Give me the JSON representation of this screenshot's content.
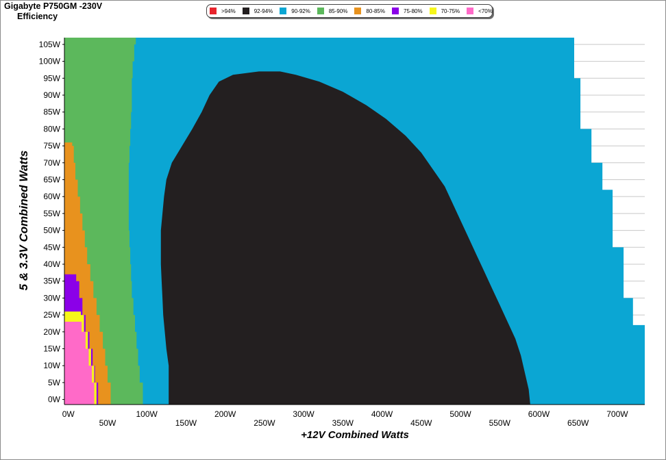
{
  "header": {
    "title_line1": "Gigabyte P750GM -230V",
    "title_line2": "Efficiency"
  },
  "legend": [
    {
      "label": ">94%",
      "color": "#e8242c"
    },
    {
      "label": "92-94%",
      "color": "#231f20"
    },
    {
      "label": "90-92%",
      "color": "#0ba6d3"
    },
    {
      "label": "85-90%",
      "color": "#5cb85c"
    },
    {
      "label": "80-85%",
      "color": "#e8921e"
    },
    {
      "label": "75-80%",
      "color": "#8b00e8"
    },
    {
      "label": "70-75%",
      "color": "#f6f61a"
    },
    {
      "label": "<70%",
      "color": "#ff6ac8"
    }
  ],
  "chart_data": {
    "type": "heatmap",
    "title": "Efficiency",
    "xlabel": "+12V Combined Watts",
    "ylabel": "5 & 3.3V Combined Watts",
    "xlim": [
      -5,
      735
    ],
    "ylim": [
      -1.5,
      107
    ],
    "x_ticks": [
      "0W",
      "50W",
      "100W",
      "150W",
      "200W",
      "250W",
      "300W",
      "350W",
      "400W",
      "450W",
      "500W",
      "550W",
      "600W",
      "650W",
      "700W"
    ],
    "x_tick_values": [
      0,
      50,
      100,
      150,
      200,
      250,
      300,
      350,
      400,
      450,
      500,
      550,
      600,
      650,
      700
    ],
    "y_ticks": [
      "0W",
      "5W",
      "10W",
      "15W",
      "20W",
      "25W",
      "30W",
      "35W",
      "40W",
      "45W",
      "50W",
      "55W",
      "60W",
      "65W",
      "70W",
      "75W",
      "80W",
      "85W",
      "90W",
      "95W",
      "100W",
      "105W"
    ],
    "y_tick_values": [
      0,
      5,
      10,
      15,
      20,
      25,
      30,
      35,
      40,
      45,
      50,
      55,
      60,
      65,
      70,
      75,
      80,
      85,
      90,
      95,
      100,
      105
    ],
    "grid": true,
    "legend_position": "top-center",
    "regions": [
      {
        "band": "90-92%",
        "boundary_x": [
          [
            -1.5,
            735
          ],
          [
            0,
            735
          ],
          [
            5,
            735
          ],
          [
            10,
            735
          ],
          [
            15,
            735
          ],
          [
            20,
            735
          ],
          [
            22,
            720
          ],
          [
            25,
            720
          ],
          [
            30,
            708
          ],
          [
            35,
            708
          ],
          [
            40,
            708
          ],
          [
            45,
            694
          ],
          [
            50,
            694
          ],
          [
            55,
            694
          ],
          [
            60,
            694
          ],
          [
            62,
            681
          ],
          [
            65,
            681
          ],
          [
            70,
            667
          ],
          [
            75,
            667
          ],
          [
            80,
            653
          ],
          [
            85,
            653
          ],
          [
            90,
            653
          ],
          [
            92,
            653
          ],
          [
            95,
            645
          ],
          [
            100,
            645
          ],
          [
            105,
            645
          ],
          [
            107,
            645
          ]
        ]
      },
      {
        "band": "85-90%",
        "boundary_x": [
          [
            -1.5,
            95
          ],
          [
            0,
            95
          ],
          [
            5,
            91
          ],
          [
            10,
            89
          ],
          [
            15,
            87
          ],
          [
            20,
            85
          ],
          [
            25,
            83
          ],
          [
            30,
            81
          ],
          [
            35,
            80
          ],
          [
            40,
            79
          ],
          [
            45,
            78
          ],
          [
            50,
            77
          ],
          [
            55,
            77
          ],
          [
            60,
            77
          ],
          [
            65,
            77
          ],
          [
            70,
            78
          ],
          [
            75,
            79
          ],
          [
            80,
            80
          ],
          [
            85,
            81
          ],
          [
            90,
            81
          ],
          [
            95,
            82
          ],
          [
            100,
            84
          ],
          [
            105,
            86
          ],
          [
            107,
            86
          ]
        ]
      },
      {
        "band": "80-85%",
        "boundary_x": [
          [
            -1.5,
            54
          ],
          [
            0,
            54
          ],
          [
            5,
            50
          ],
          [
            10,
            47
          ],
          [
            15,
            44
          ],
          [
            20,
            40
          ],
          [
            25,
            36
          ],
          [
            30,
            32
          ],
          [
            35,
            28
          ],
          [
            40,
            24
          ],
          [
            45,
            21
          ],
          [
            50,
            18
          ],
          [
            55,
            15
          ],
          [
            60,
            12
          ],
          [
            65,
            9
          ],
          [
            70,
            7
          ],
          [
            75,
            5
          ],
          [
            76,
            0
          ]
        ]
      },
      {
        "band": "75-80%",
        "boundary_x": [
          [
            -1.5,
            38
          ],
          [
            0,
            38
          ],
          [
            5,
            34
          ],
          [
            10,
            31
          ],
          [
            15,
            27
          ],
          [
            20,
            22
          ],
          [
            25,
            18
          ],
          [
            30,
            14
          ],
          [
            35,
            10
          ],
          [
            37,
            0
          ]
        ]
      },
      {
        "band": "70-75%",
        "boundary_x": [
          [
            -1.5,
            36
          ],
          [
            0,
            36
          ],
          [
            5,
            33
          ],
          [
            10,
            29
          ],
          [
            15,
            25
          ],
          [
            20,
            20
          ],
          [
            25,
            16
          ],
          [
            26,
            0
          ]
        ]
      },
      {
        "band": "<70%",
        "boundary_x": [
          [
            -1.5,
            33
          ],
          [
            0,
            33
          ],
          [
            5,
            30
          ],
          [
            10,
            26
          ],
          [
            15,
            22
          ],
          [
            20,
            17
          ],
          [
            23,
            0
          ]
        ]
      },
      {
        "band": "92-94%",
        "outline": [
          [
            128,
            -1.5
          ],
          [
            128,
            5
          ],
          [
            128,
            10
          ],
          [
            125,
            15
          ],
          [
            123,
            20
          ],
          [
            121,
            25
          ],
          [
            120,
            30
          ],
          [
            119,
            35
          ],
          [
            118,
            40
          ],
          [
            118,
            45
          ],
          [
            118,
            50
          ],
          [
            120,
            55
          ],
          [
            122,
            60
          ],
          [
            125,
            65
          ],
          [
            132,
            70
          ],
          [
            145,
            75
          ],
          [
            158,
            80
          ],
          [
            170,
            85
          ],
          [
            180,
            90
          ],
          [
            192,
            94
          ],
          [
            210,
            96
          ],
          [
            243,
            97
          ],
          [
            270,
            97
          ],
          [
            290,
            96
          ],
          [
            320,
            94
          ],
          [
            350,
            91
          ],
          [
            380,
            87
          ],
          [
            405,
            83
          ],
          [
            430,
            78
          ],
          [
            450,
            73
          ],
          [
            465,
            68
          ],
          [
            480,
            63
          ],
          [
            490,
            58
          ],
          [
            500,
            53
          ],
          [
            510,
            48
          ],
          [
            520,
            43
          ],
          [
            530,
            38
          ],
          [
            540,
            33
          ],
          [
            550,
            28
          ],
          [
            560,
            23
          ],
          [
            570,
            18
          ],
          [
            577,
            13
          ],
          [
            582,
            8
          ],
          [
            587,
            3
          ],
          [
            589,
            -1.5
          ]
        ]
      }
    ]
  }
}
